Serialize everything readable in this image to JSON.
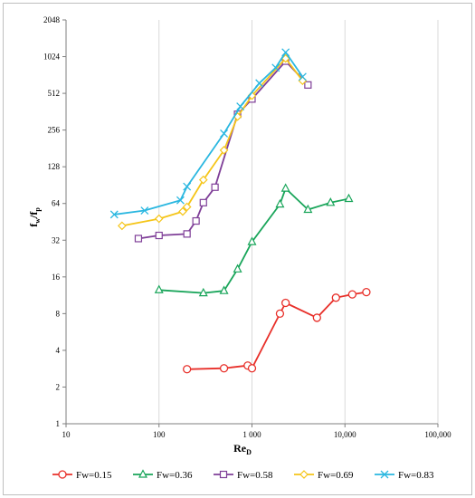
{
  "chart_data": {
    "type": "line",
    "title": "",
    "xlabel": {
      "main": "Re",
      "sub": "D"
    },
    "ylabel": {
      "main": "f",
      "sub1": "w",
      "mid": "/f",
      "sub2": "p"
    },
    "x_scale": "log10",
    "y_scale": "log2",
    "xlim": [
      10,
      100000
    ],
    "ylim": [
      1,
      2048
    ],
    "x_ticks": [
      {
        "value": 10,
        "label": "10"
      },
      {
        "value": 100,
        "label": "100"
      },
      {
        "value": 1000,
        "label": "1 000"
      },
      {
        "value": 10000,
        "label": "10,000"
      },
      {
        "value": 100000,
        "label": "100,000"
      }
    ],
    "y_ticks": [
      {
        "value": 1,
        "label": "1"
      },
      {
        "value": 2,
        "label": "2"
      },
      {
        "value": 4,
        "label": "4"
      },
      {
        "value": 8,
        "label": "8"
      },
      {
        "value": 16,
        "label": "16"
      },
      {
        "value": 32,
        "label": "32"
      },
      {
        "value": 64,
        "label": "64"
      },
      {
        "value": 128,
        "label": "128"
      },
      {
        "value": 256,
        "label": "256"
      },
      {
        "value": 512,
        "label": "512"
      },
      {
        "value": 1024,
        "label": "1024"
      },
      {
        "value": 2048,
        "label": "2048"
      }
    ],
    "grid": {
      "vertical": true,
      "horizontal": false
    },
    "legend": "bottom",
    "series": [
      {
        "name": "Fw=0.15",
        "color": "#e8302a",
        "marker": "circle",
        "x": [
          200,
          500,
          900,
          1000,
          2000,
          2300,
          5000,
          8000,
          12000,
          17000
        ],
        "y": [
          2.8,
          2.85,
          3.0,
          2.85,
          8.0,
          9.8,
          7.4,
          10.8,
          11.5,
          12.0
        ]
      },
      {
        "name": "Fw=0.36",
        "color": "#19a55a",
        "marker": "triangle",
        "x": [
          100,
          300,
          500,
          700,
          1000,
          2000,
          2300,
          4000,
          7000,
          11000
        ],
        "y": [
          12.5,
          11.8,
          12.3,
          18.5,
          31,
          63,
          85,
          57,
          65,
          70
        ]
      },
      {
        "name": "Fw=0.58",
        "color": "#7f3f98",
        "marker": "square",
        "x": [
          60,
          100,
          200,
          250,
          300,
          400,
          700,
          1000,
          2300,
          4000
        ],
        "y": [
          33,
          35,
          36,
          46,
          65,
          87,
          345,
          460,
          940,
          600
        ]
      },
      {
        "name": "Fw=0.69",
        "color": "#f5c518",
        "marker": "diamond",
        "x": [
          40,
          100,
          180,
          200,
          300,
          500,
          700,
          1000,
          2300,
          3500
        ],
        "y": [
          42,
          48,
          55,
          60,
          100,
          175,
          330,
          490,
          990,
          650
        ]
      },
      {
        "name": "Fw=0.83",
        "color": "#2ab7e0",
        "marker": "x",
        "x": [
          33,
          70,
          170,
          200,
          500,
          750,
          1200,
          1800,
          2300,
          3500
        ],
        "y": [
          52,
          56,
          68,
          88,
          240,
          400,
          620,
          830,
          1110,
          700
        ]
      }
    ]
  }
}
